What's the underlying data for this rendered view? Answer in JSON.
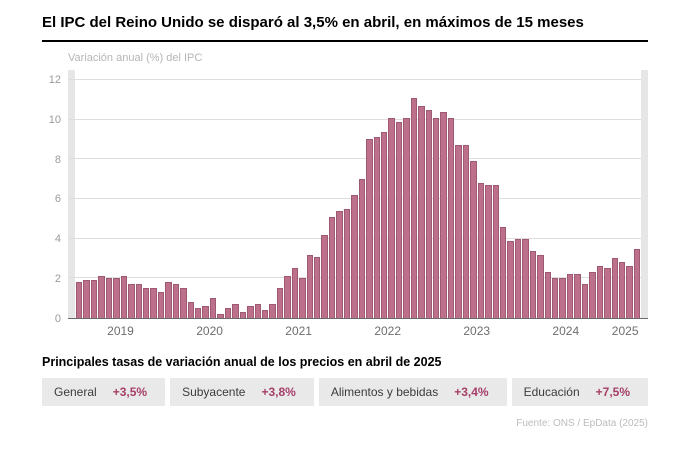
{
  "header": {
    "title": "El IPC del Reino Unido se disparó al 3,5% en abril, en máximos de 15 meses"
  },
  "colors": {
    "bar_fill": "#bd7089",
    "bar_stroke": "#9e5a74",
    "value_accent": "#a63f68",
    "badge_background": "#e9e9e9"
  },
  "chart_data": {
    "type": "bar",
    "title": "Variación anual (%) del IPC",
    "xlabel": "",
    "ylabel": "Variación anual (%) del IPC",
    "ylim": [
      0,
      12.5
    ],
    "yticks": [
      0,
      2,
      4,
      6,
      8,
      10,
      12
    ],
    "grid": "horizontal",
    "legend": "none",
    "x_unit": "month",
    "series_by_year": [
      {
        "year": "2019",
        "values": [
          1.8,
          1.9,
          1.9,
          2.1,
          2.0,
          2.0,
          2.1,
          1.7,
          1.7,
          1.5,
          1.5,
          1.3
        ]
      },
      {
        "year": "2020",
        "values": [
          1.8,
          1.7,
          1.5,
          0.8,
          0.5,
          0.6,
          1.0,
          0.2,
          0.5,
          0.7,
          0.3,
          0.6
        ]
      },
      {
        "year": "2021",
        "values": [
          0.7,
          0.4,
          0.7,
          1.5,
          2.1,
          2.5,
          2.0,
          3.2,
          3.1,
          4.2,
          5.1,
          5.4
        ]
      },
      {
        "year": "2022",
        "values": [
          5.5,
          6.2,
          7.0,
          9.0,
          9.1,
          9.4,
          10.1,
          9.9,
          10.1,
          11.1,
          10.7,
          10.5
        ]
      },
      {
        "year": "2023",
        "values": [
          10.1,
          10.4,
          10.1,
          8.7,
          8.7,
          7.9,
          6.8,
          6.7,
          6.7,
          4.6,
          3.9,
          4.0
        ]
      },
      {
        "year": "2024",
        "values": [
          4.0,
          3.4,
          3.2,
          2.3,
          2.0,
          2.0,
          2.2,
          2.2,
          1.7,
          2.3,
          2.6,
          2.5
        ]
      },
      {
        "year": "2025",
        "values": [
          3.0,
          2.8,
          2.6,
          3.5
        ]
      }
    ]
  },
  "highlights": {
    "heading": "Principales tasas de variación anual de los precios en abril de 2025",
    "items": [
      {
        "label": "General",
        "value": "+3,5%"
      },
      {
        "label": "Subyacente",
        "value": "+3,8%"
      },
      {
        "label": "Alimentos y bebidas",
        "value": "+3,4%"
      },
      {
        "label": "Educación",
        "value": "+7,5%"
      }
    ]
  },
  "footer": {
    "source": "Fuente: ONS / EpData (2025)"
  }
}
